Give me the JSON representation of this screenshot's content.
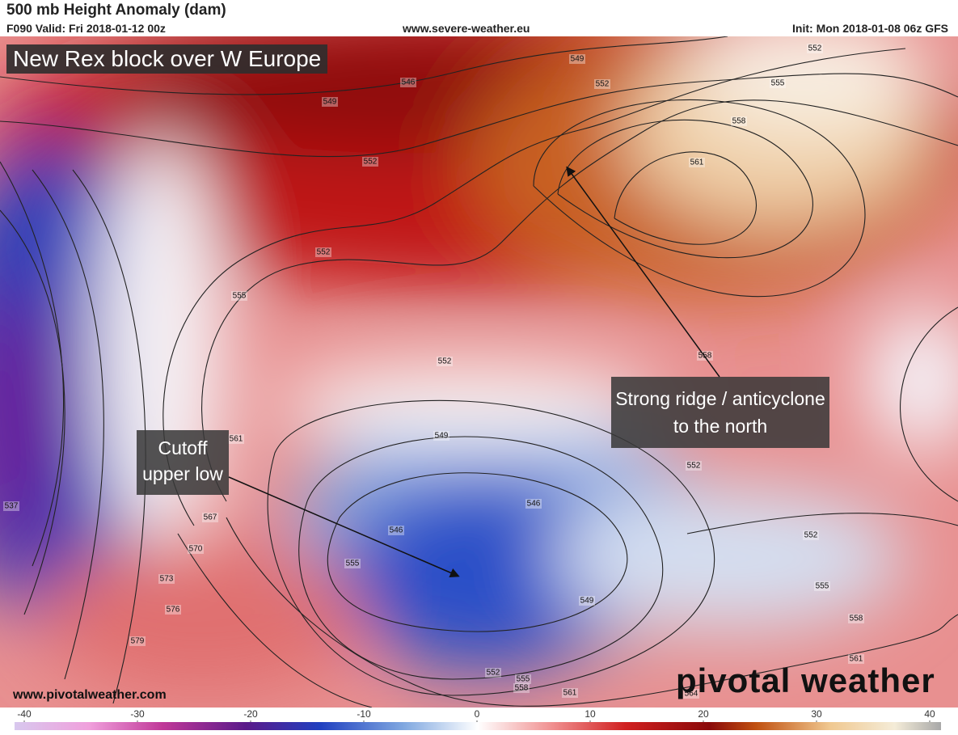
{
  "header": {
    "title": "500 mb Height Anomaly (dam)",
    "valid": "F090 Valid: Fri 2018-01-12 00z",
    "source": "www.severe-weather.eu",
    "init": "Init: Mon 2018-01-08 06z GFS"
  },
  "map": {
    "headline": "New Rex block over W Europe",
    "annotations": [
      {
        "lines": [
          "Cutoff",
          "upper low"
        ]
      },
      {
        "lines": [
          "Strong ridge / anticyclone",
          "to the north"
        ]
      }
    ],
    "contour_labels": [
      "549",
      "546",
      "552",
      "549",
      "552",
      "552",
      "555",
      "558",
      "561",
      "552",
      "555",
      "552",
      "558",
      "549",
      "561",
      "552",
      "567",
      "570",
      "573",
      "576",
      "579",
      "546",
      "546",
      "555",
      "549",
      "552",
      "555",
      "558",
      "561",
      "552",
      "555",
      "558",
      "561",
      "564",
      "537"
    ]
  },
  "footer": {
    "website": "www.pivotalweather.com",
    "brand": "pivotal weather"
  },
  "colorbar": {
    "ticks": [
      -40,
      -30,
      -20,
      -10,
      0,
      10,
      20,
      30,
      40
    ]
  }
}
